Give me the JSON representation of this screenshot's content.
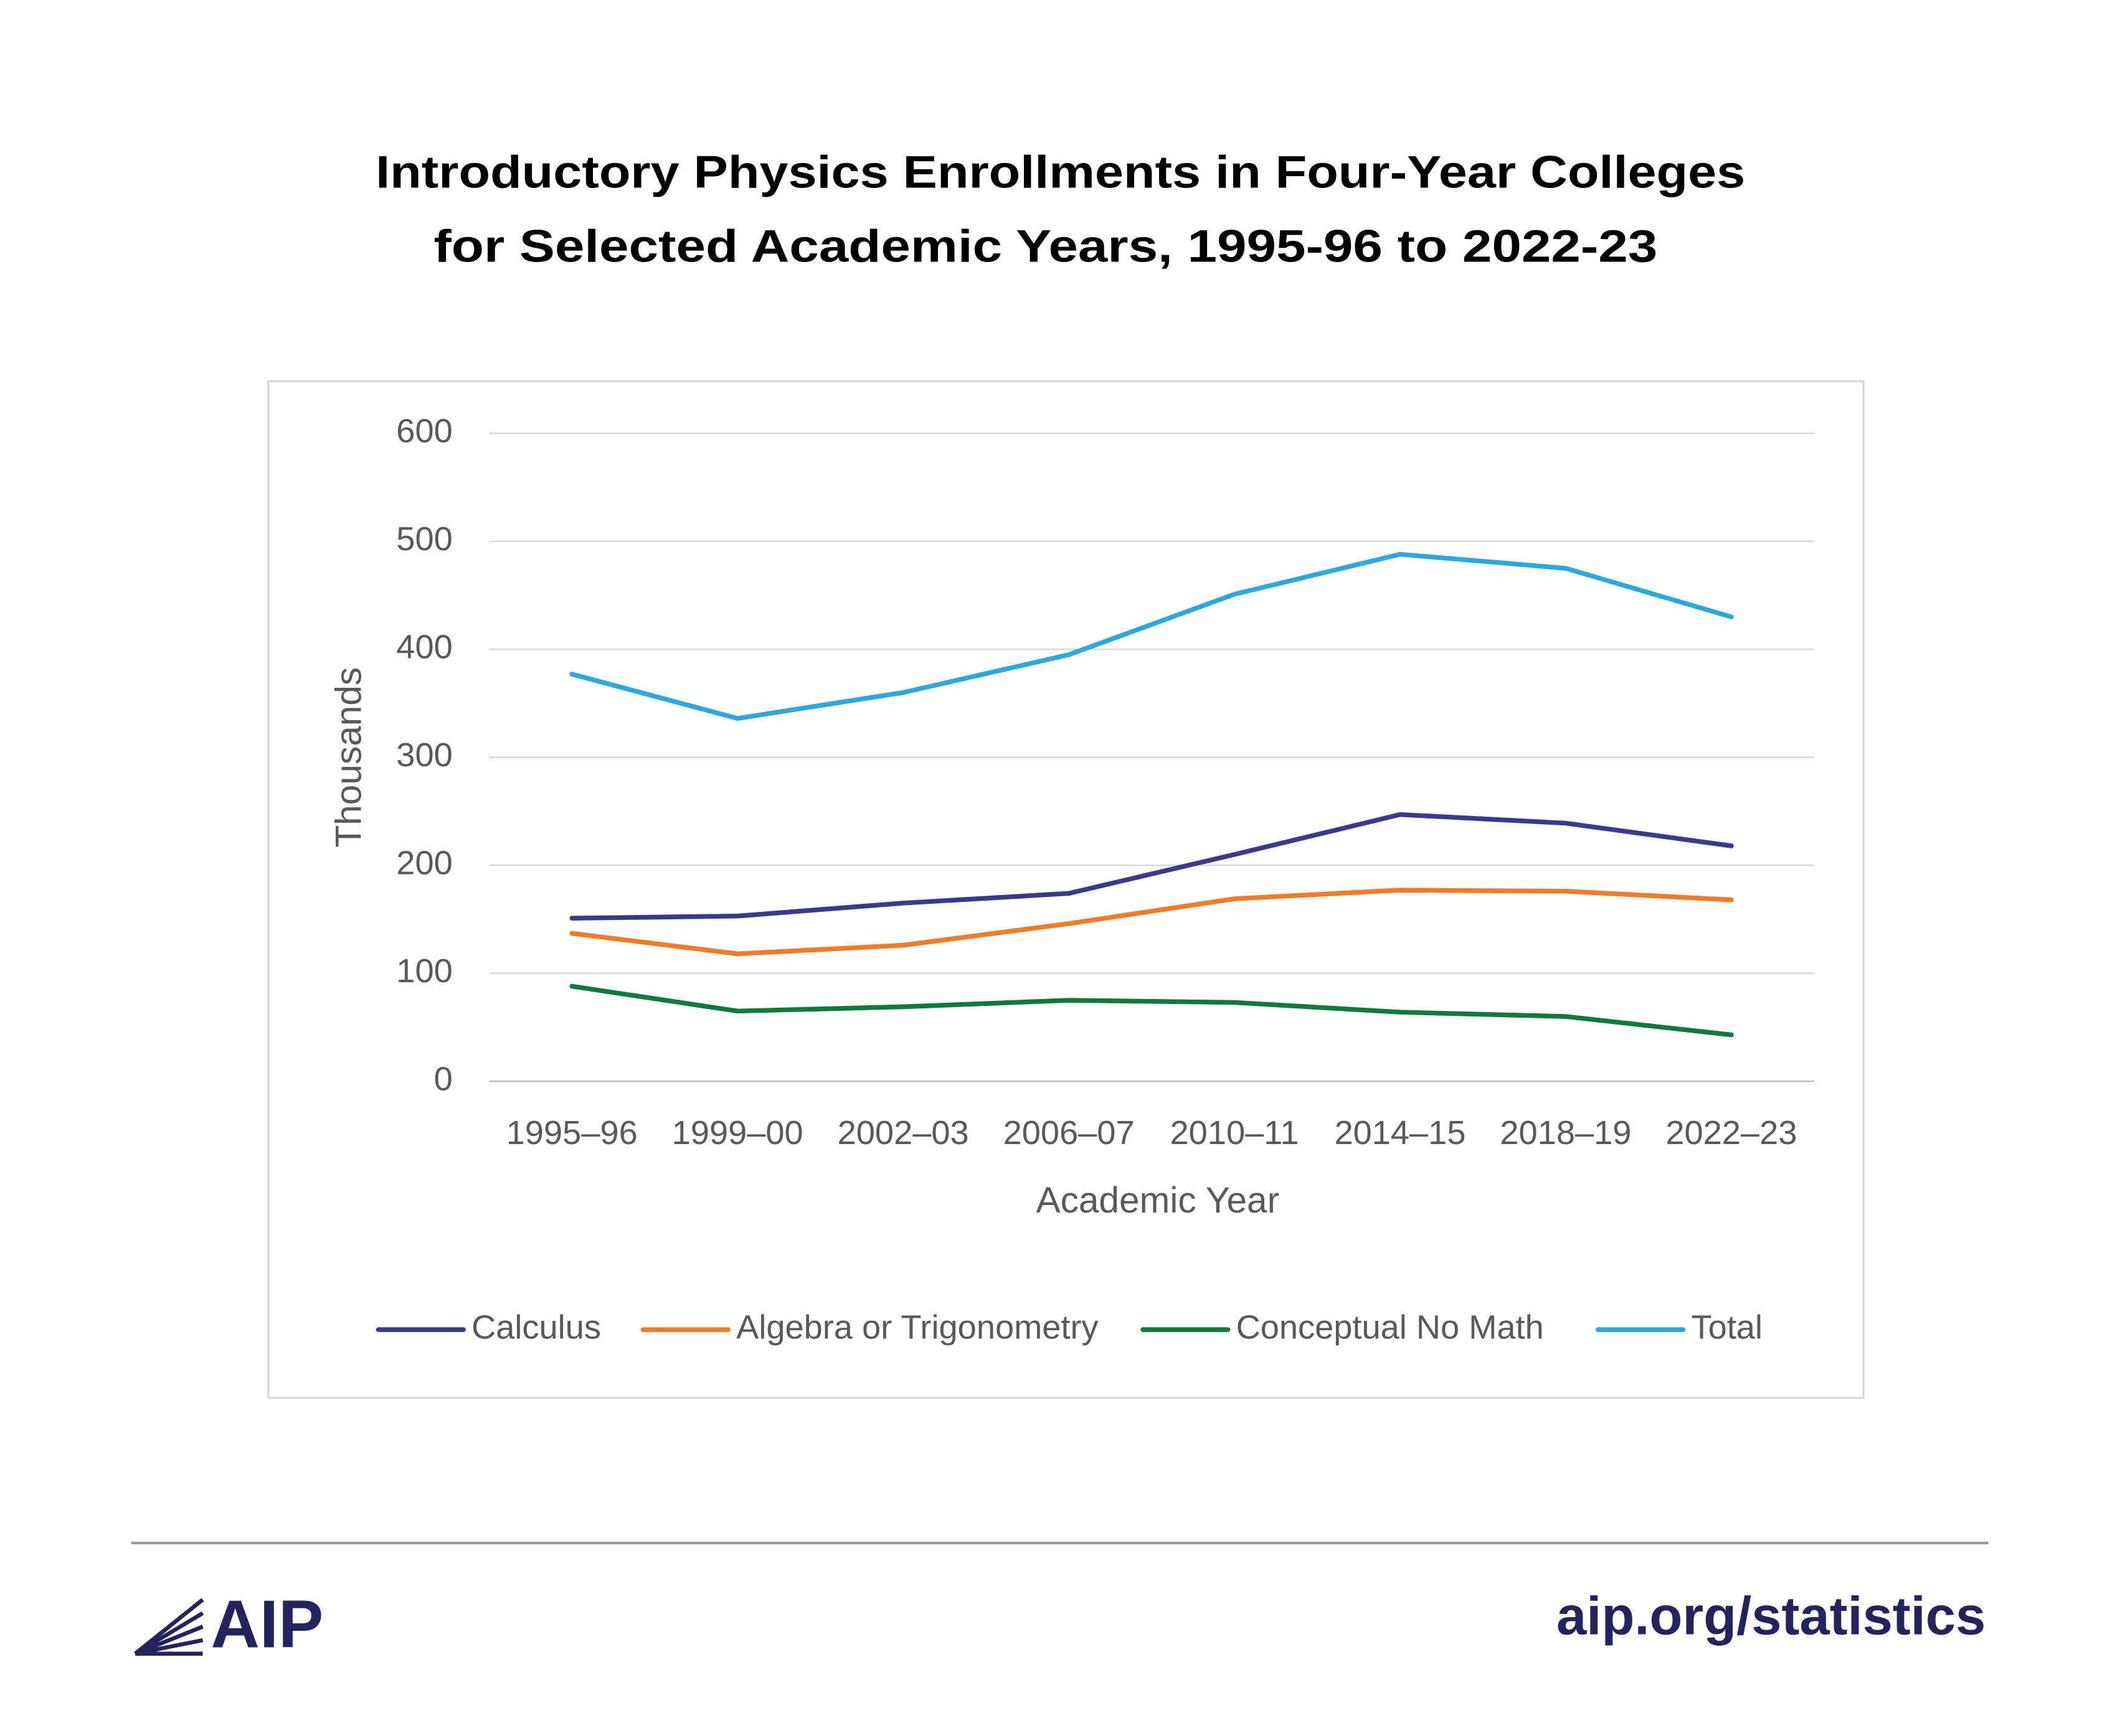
{
  "chart_data": {
    "type": "line",
    "title": [
      "Introductory Physics Enrollments in Four-Year Colleges",
      "for Selected Academic Years, 1995-96 to 2022-23"
    ],
    "x_label": "Academic Year",
    "y_label": "Thousands",
    "categories": [
      "1995–96",
      "1999–00",
      "2002–03",
      "2006–07",
      "2010–11",
      "2014–15",
      "2018–19",
      "2022–23"
    ],
    "series": [
      {
        "name": "Calculus",
        "color": "#3a3a8c",
        "values": [
          151,
          153,
          165,
          174,
          210,
          247,
          239,
          218
        ]
      },
      {
        "name": "Algebra or Trigonometry",
        "color": "#f07c2a",
        "values": [
          137,
          118,
          126,
          146,
          169,
          177,
          176,
          168
        ]
      },
      {
        "name": "Conceptual No Math",
        "color": "#0e7a3e",
        "values": [
          88,
          65,
          69,
          75,
          73,
          64,
          60,
          43
        ]
      },
      {
        "name": "Total",
        "color": "#2ea8dc",
        "values": [
          377,
          336,
          360,
          395,
          451,
          488,
          475,
          430
        ]
      }
    ],
    "ylim": [
      0,
      600
    ],
    "yticks": [
      0,
      100,
      200,
      300,
      400,
      500,
      600
    ],
    "grid": true,
    "legend": "bottom"
  },
  "footer": {
    "logo": "AIP",
    "url": "aip.org/statistics"
  }
}
